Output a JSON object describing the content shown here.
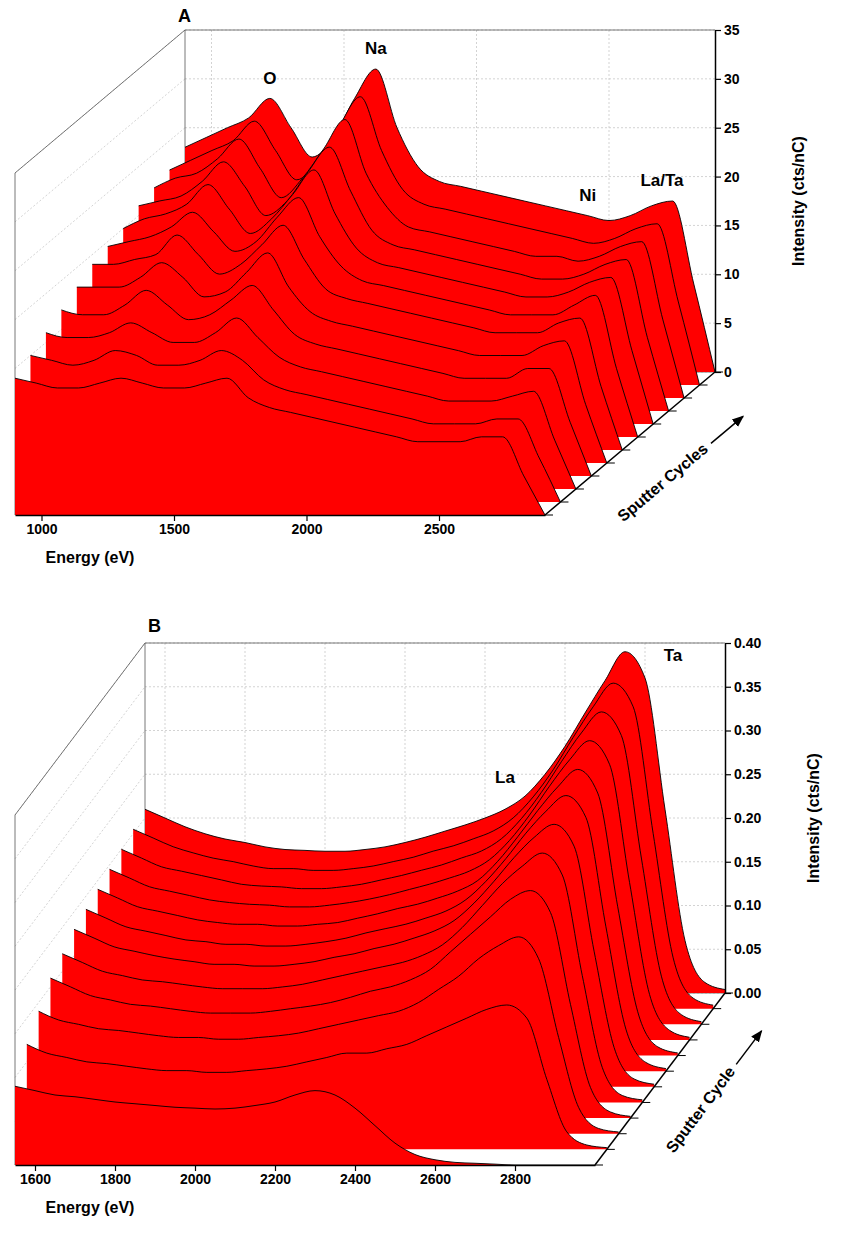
{
  "chart_data": [
    {
      "type": "waterfall",
      "panel": "A",
      "x_label": "Energy (eV)",
      "y_label": "Intensity (cts/nC)",
      "z_label": "Sputter Cycles",
      "xlim": [
        900,
        2900
      ],
      "xticks": [
        1000,
        1500,
        2000,
        2500
      ],
      "ylim": [
        0,
        35
      ],
      "yticks": [
        0,
        5,
        10,
        15,
        20,
        25,
        30,
        35
      ],
      "grid": true,
      "color": "#ff0000",
      "x": [
        900,
        980,
        1060,
        1140,
        1220,
        1300,
        1380,
        1460,
        1540,
        1620,
        1700,
        1780,
        1860,
        1940,
        2020,
        2100,
        2180,
        2260,
        2340,
        2420,
        2500,
        2580,
        2660,
        2740,
        2820,
        2900
      ],
      "series": [
        {
          "values": [
            14,
            13.5,
            13,
            13,
            13.5,
            14,
            13.5,
            13,
            13,
            13.5,
            14,
            12,
            11,
            10.5,
            10,
            9.5,
            9,
            8.5,
            8,
            7.5,
            7.5,
            7.5,
            8,
            8,
            4,
            0
          ]
        },
        {
          "values": [
            15,
            14.5,
            14,
            14.5,
            15.5,
            15,
            14,
            14,
            14.5,
            15.5,
            14.5,
            12.5,
            11.5,
            11,
            10.5,
            10,
            9.5,
            9,
            8.5,
            8,
            8,
            8,
            8.5,
            8.5,
            4.5,
            0
          ]
        },
        {
          "values": [
            16,
            15.5,
            15.5,
            16,
            17,
            16,
            15,
            15,
            16,
            17.5,
            15.5,
            13.5,
            12.5,
            12,
            11.5,
            11,
            10.5,
            10,
            9.5,
            9,
            9,
            9,
            9.5,
            10,
            5,
            0
          ]
        },
        {
          "values": [
            17,
            16.5,
            16.5,
            17.5,
            19,
            17.5,
            16,
            16.5,
            18,
            19.5,
            17,
            14.5,
            13.5,
            13,
            12.5,
            12,
            11.5,
            11,
            10.5,
            10,
            10,
            10,
            11,
            11,
            5.5,
            0
          ]
        },
        {
          "values": [
            18,
            18,
            18,
            19,
            20.5,
            19,
            17,
            17.5,
            19.5,
            21.5,
            18,
            15.5,
            14.5,
            14,
            13.5,
            13,
            12.5,
            12,
            11.5,
            11,
            11,
            11,
            12,
            12.5,
            6,
            0
          ]
        },
        {
          "values": [
            19,
            19,
            19.5,
            20,
            22,
            20,
            18,
            19,
            21,
            23,
            19.5,
            16.5,
            15.5,
            15,
            14.5,
            14,
            13.5,
            13,
            12.5,
            12,
            12,
            12,
            13,
            13.5,
            6.5,
            0
          ]
        },
        {
          "values": [
            19.5,
            20,
            20.5,
            21.5,
            23,
            21,
            19,
            20,
            22.5,
            24.5,
            20.5,
            17.5,
            16,
            15.5,
            15,
            14.5,
            14,
            13.5,
            13,
            12.5,
            12.5,
            12.5,
            13.5,
            14.5,
            7,
            0
          ]
        },
        {
          "values": [
            20,
            21,
            21.5,
            22.5,
            24.5,
            22,
            19.5,
            21,
            23.5,
            26,
            21.5,
            18,
            16.5,
            16,
            15.5,
            15,
            14.5,
            14,
            13.5,
            13,
            13,
            13.5,
            14.5,
            15,
            7.5,
            0
          ]
        },
        {
          "values": [
            21,
            21.5,
            22,
            23.5,
            25.5,
            23,
            20,
            21.5,
            24.5,
            27,
            22.5,
            18.5,
            17,
            16.5,
            16,
            15.5,
            15,
            14.5,
            14,
            13.5,
            13.5,
            14,
            15,
            15.5,
            7.5,
            0
          ]
        },
        {
          "values": [
            21.5,
            22.5,
            23,
            24.5,
            26.5,
            23.5,
            20.5,
            22.5,
            25.5,
            28.5,
            23,
            19.5,
            17.5,
            17,
            16.5,
            16,
            15.5,
            15,
            14.5,
            14.5,
            14,
            14.5,
            15.5,
            16,
            8,
            0
          ]
        },
        {
          "values": [
            22,
            23,
            24,
            25,
            27,
            24,
            21,
            23,
            26.5,
            29.5,
            24,
            20,
            18.5,
            18,
            17.5,
            17,
            16.5,
            16,
            15.5,
            15,
            14.5,
            15,
            16,
            16.5,
            8.5,
            0
          ]
        },
        {
          "values": [
            23,
            24,
            25,
            26,
            28,
            25,
            22,
            24,
            28,
            31,
            25,
            21,
            19.5,
            19,
            18.5,
            18,
            17.5,
            17,
            16.5,
            16,
            15.5,
            16,
            17,
            17.5,
            9,
            0
          ]
        }
      ],
      "annotations": [
        {
          "text": "O",
          "x": 1220,
          "y": 29.5
        },
        {
          "text": "Na",
          "x": 1620,
          "y": 32.5
        },
        {
          "text": "Ni",
          "x": 2420,
          "y": 17.5
        },
        {
          "text": "La/Ta",
          "x": 2700,
          "y": 19
        }
      ]
    },
    {
      "type": "waterfall",
      "panel": "B",
      "x_label": "Energy (eV)",
      "y_label": "Intensity (cts/nC)",
      "z_label": "Sputter Cycle",
      "xlim": [
        1550,
        3000
      ],
      "xticks": [
        1600,
        1800,
        2000,
        2200,
        2400,
        2600,
        2800
      ],
      "ylim": [
        0,
        0.4
      ],
      "yticks": [
        {
          "value": 0,
          "label": "0.00"
        },
        {
          "value": 0.05,
          "label": "0.05"
        },
        {
          "value": 0.1,
          "label": "0.10"
        },
        {
          "value": 0.15,
          "label": "0.15"
        },
        {
          "value": 0.2,
          "label": "0.20"
        },
        {
          "value": 0.25,
          "label": "0.25"
        },
        {
          "value": 0.3,
          "label": "0.30"
        },
        {
          "value": 0.35,
          "label": "0.35"
        },
        {
          "value": 0.4,
          "label": "0.40"
        }
      ],
      "grid": true,
      "color": "#ff0000",
      "x": [
        1550,
        1600,
        1650,
        1700,
        1750,
        1800,
        1850,
        1900,
        1950,
        2000,
        2050,
        2100,
        2150,
        2200,
        2250,
        2300,
        2350,
        2400,
        2450,
        2500,
        2550,
        2600,
        2650,
        2700,
        2750,
        2800,
        2850,
        2900,
        2950,
        3000
      ],
      "series": [
        {
          "values": [
            0.09,
            0.085,
            0.08,
            0.078,
            0.075,
            0.072,
            0.07,
            0.068,
            0.066,
            0.065,
            0.064,
            0.065,
            0.068,
            0.072,
            0.08,
            0.085,
            0.08,
            0.065,
            0.045,
            0.025,
            0.012,
            0.006,
            0.003,
            0.002,
            0.001,
            0,
            0,
            0,
            0,
            0
          ]
        },
        {
          "values": [
            0.12,
            0.11,
            0.105,
            0.1,
            0.098,
            0.095,
            0.092,
            0.09,
            0.09,
            0.088,
            0.088,
            0.09,
            0.092,
            0.095,
            0.1,
            0.105,
            0.11,
            0.11,
            0.115,
            0.12,
            0.13,
            0.14,
            0.15,
            0.16,
            0.165,
            0.15,
            0.08,
            0.02,
            0.005,
            0.002
          ]
        },
        {
          "values": [
            0.14,
            0.13,
            0.125,
            0.12,
            0.118,
            0.115,
            0.112,
            0.11,
            0.11,
            0.108,
            0.108,
            0.11,
            0.112,
            0.115,
            0.12,
            0.125,
            0.13,
            0.135,
            0.14,
            0.15,
            0.165,
            0.18,
            0.2,
            0.215,
            0.225,
            0.2,
            0.11,
            0.03,
            0.006,
            0.002
          ]
        },
        {
          "values": [
            0.16,
            0.15,
            0.14,
            0.135,
            0.13,
            0.128,
            0.125,
            0.122,
            0.12,
            0.12,
            0.12,
            0.122,
            0.125,
            0.128,
            0.132,
            0.138,
            0.145,
            0.15,
            0.158,
            0.17,
            0.19,
            0.21,
            0.23,
            0.25,
            0.26,
            0.235,
            0.13,
            0.035,
            0.007,
            0.002
          ]
        },
        {
          "values": [
            0.17,
            0.16,
            0.15,
            0.145,
            0.14,
            0.138,
            0.135,
            0.132,
            0.13,
            0.13,
            0.13,
            0.132,
            0.135,
            0.14,
            0.145,
            0.15,
            0.155,
            0.16,
            0.168,
            0.18,
            0.2,
            0.225,
            0.25,
            0.27,
            0.285,
            0.26,
            0.145,
            0.04,
            0.008,
            0.003
          ]
        },
        {
          "values": [
            0.18,
            0.17,
            0.16,
            0.155,
            0.15,
            0.146,
            0.143,
            0.14,
            0.14,
            0.138,
            0.138,
            0.14,
            0.143,
            0.148,
            0.152,
            0.158,
            0.163,
            0.17,
            0.178,
            0.19,
            0.21,
            0.235,
            0.262,
            0.285,
            0.3,
            0.275,
            0.155,
            0.045,
            0.009,
            0.003
          ]
        },
        {
          "values": [
            0.185,
            0.175,
            0.165,
            0.16,
            0.155,
            0.15,
            0.148,
            0.145,
            0.145,
            0.143,
            0.143,
            0.145,
            0.148,
            0.152,
            0.158,
            0.163,
            0.168,
            0.175,
            0.183,
            0.196,
            0.217,
            0.243,
            0.272,
            0.297,
            0.315,
            0.29,
            0.165,
            0.048,
            0.01,
            0.003
          ]
        },
        {
          "values": [
            0.19,
            0.18,
            0.17,
            0.165,
            0.16,
            0.155,
            0.152,
            0.15,
            0.15,
            0.148,
            0.148,
            0.15,
            0.152,
            0.157,
            0.162,
            0.168,
            0.173,
            0.18,
            0.188,
            0.2,
            0.222,
            0.25,
            0.28,
            0.307,
            0.327,
            0.3,
            0.17,
            0.05,
            0.01,
            0.003
          ]
        },
        {
          "values": [
            0.195,
            0.185,
            0.175,
            0.17,
            0.165,
            0.16,
            0.157,
            0.155,
            0.154,
            0.152,
            0.152,
            0.154,
            0.157,
            0.161,
            0.166,
            0.172,
            0.178,
            0.185,
            0.193,
            0.206,
            0.228,
            0.257,
            0.29,
            0.32,
            0.342,
            0.315,
            0.18,
            0.052,
            0.011,
            0.003
          ]
        },
        {
          "values": [
            0.2,
            0.19,
            0.18,
            0.175,
            0.17,
            0.165,
            0.16,
            0.158,
            0.157,
            0.155,
            0.155,
            0.157,
            0.16,
            0.165,
            0.17,
            0.176,
            0.182,
            0.19,
            0.198,
            0.212,
            0.235,
            0.265,
            0.3,
            0.333,
            0.357,
            0.33,
            0.19,
            0.055,
            0.011,
            0.003
          ]
        },
        {
          "values": [
            0.205,
            0.195,
            0.185,
            0.178,
            0.172,
            0.168,
            0.163,
            0.16,
            0.16,
            0.158,
            0.158,
            0.16,
            0.163,
            0.168,
            0.173,
            0.18,
            0.186,
            0.194,
            0.203,
            0.218,
            0.242,
            0.273,
            0.31,
            0.345,
            0.372,
            0.345,
            0.2,
            0.058,
            0.012,
            0.004
          ]
        },
        {
          "values": [
            0.21,
            0.2,
            0.19,
            0.182,
            0.176,
            0.172,
            0.167,
            0.164,
            0.163,
            0.162,
            0.162,
            0.164,
            0.167,
            0.172,
            0.178,
            0.185,
            0.192,
            0.2,
            0.21,
            0.225,
            0.25,
            0.282,
            0.32,
            0.357,
            0.39,
            0.36,
            0.21,
            0.06,
            0.012,
            0.004
          ]
        }
      ],
      "annotations": [
        {
          "text": "La",
          "x": 2450,
          "y": 0.24
        },
        {
          "text": "Ta",
          "x": 2870,
          "y": 0.38
        }
      ]
    }
  ]
}
